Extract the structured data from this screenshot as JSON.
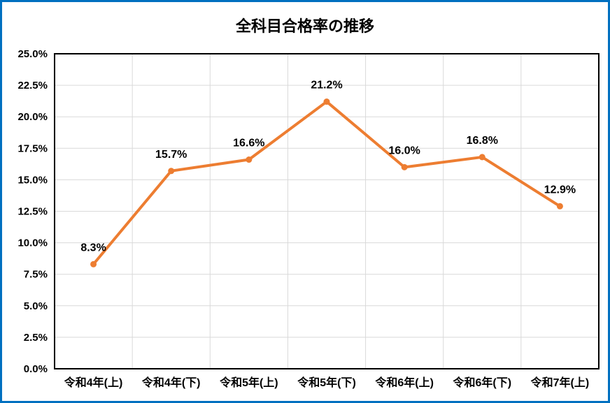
{
  "chart_data": {
    "type": "line",
    "title": "全科目合格率の推移",
    "categories": [
      "令和4年(上)",
      "令和4年(下)",
      "令和5年(上)",
      "令和5年(下)",
      "令和6年(上)",
      "令和6年(下)",
      "令和7年(上)"
    ],
    "values": [
      8.3,
      15.7,
      16.6,
      21.2,
      16.0,
      16.8,
      12.9
    ],
    "point_labels": [
      "8.3%",
      "15.7%",
      "16.6%",
      "21.2%",
      "16.0%",
      "16.8%",
      "12.9%"
    ],
    "ylim": [
      0,
      25
    ],
    "ytick_step": 2.5,
    "ytick_labels": [
      "0.0%",
      "2.5%",
      "5.0%",
      "7.5%",
      "10.0%",
      "12.5%",
      "15.0%",
      "17.5%",
      "20.0%",
      "22.5%",
      "25.0%"
    ],
    "xlabel": "",
    "ylabel": "",
    "grid": true,
    "legend": "none",
    "colors": {
      "line": "#ED7D31",
      "marker": "#ED7D31",
      "gridline": "#D9D9D9",
      "plot_border": "#000000",
      "outer_border": "#0070C0",
      "text": "#000000",
      "background": "#FFFFFF"
    }
  }
}
